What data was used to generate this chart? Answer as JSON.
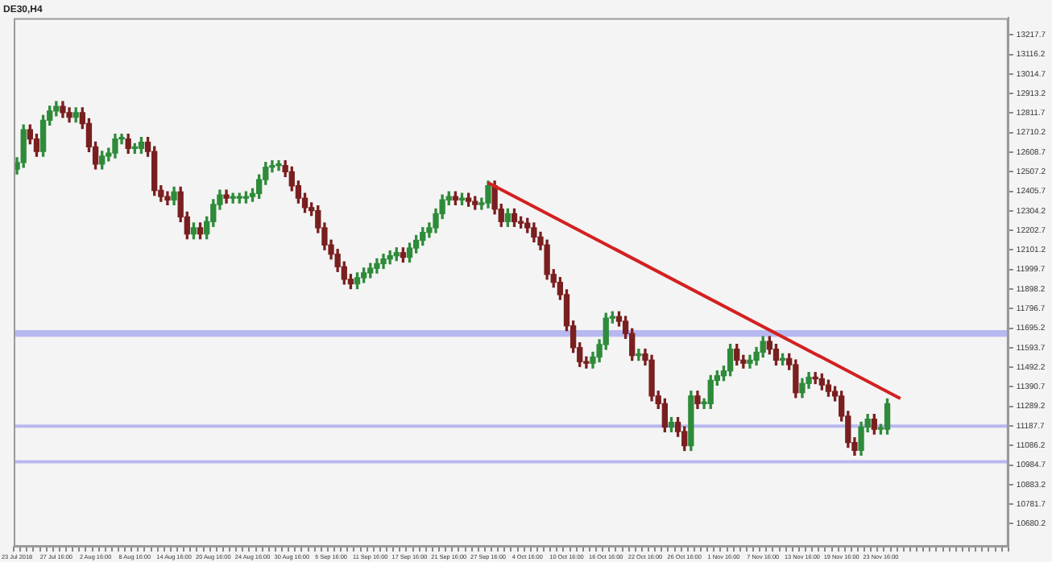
{
  "chart_data": {
    "type": "candlestick",
    "title": "DE30,H4",
    "categories": [
      "23 Jul 2018",
      null,
      null,
      null,
      null,
      null,
      "27 Jul 16:00",
      null,
      null,
      null,
      null,
      null,
      "2 Aug 16:00",
      null,
      null,
      null,
      null,
      null,
      "8 Aug 16:00",
      null,
      null,
      null,
      null,
      null,
      "14 Aug 16:00",
      null,
      null,
      null,
      null,
      null,
      "20 Aug 16:00",
      null,
      null,
      null,
      null,
      null,
      "24 Aug 16:00",
      null,
      null,
      null,
      null,
      null,
      "30 Aug 16:00",
      null,
      null,
      null,
      null,
      null,
      "5 Sep 16:00",
      null,
      null,
      null,
      null,
      null,
      "11 Sep 16:00",
      null,
      null,
      null,
      null,
      null,
      "17 Sep 16:00",
      null,
      null,
      null,
      null,
      null,
      "21 Sep 16:00",
      null,
      null,
      null,
      null,
      null,
      "27 Sep 16:00",
      null,
      null,
      null,
      null,
      null,
      "4 Oct 16:00",
      null,
      null,
      null,
      null,
      null,
      "10 Oct 16:00",
      null,
      null,
      null,
      null,
      null,
      "16 Oct 16:00",
      null,
      null,
      null,
      null,
      null,
      "22 Oct 16:00",
      null,
      null,
      null,
      null,
      null,
      "26 Oct 16:00",
      null,
      null,
      null,
      null,
      null,
      "1 Nov 16:00",
      null,
      null,
      null,
      null,
      null,
      "7 Nov 16:00",
      null,
      null,
      null,
      null,
      null,
      "13 Nov 16:00",
      null,
      null,
      null,
      null,
      null,
      "19 Nov 16:00",
      null,
      null,
      null,
      null,
      null,
      "23 Nov 16:00",
      null,
      null,
      null,
      null,
      null,
      null,
      null,
      null,
      null,
      null,
      null,
      null,
      null,
      null,
      null,
      null,
      null,
      null,
      null
    ],
    "colors": [
      "#2e8b3a",
      "#2e8b3a",
      "#7a1f1f",
      "#7a1f1f",
      "#2e8b3a",
      "#2e8b3a",
      "#2e8b3a",
      "#7a1f1f",
      "#7a1f1f",
      "#2e8b3a",
      "#7a1f1f",
      "#7a1f1f",
      "#7a1f1f",
      "#2e8b3a",
      "#2e8b3a",
      "#2e8b3a",
      "#2e8b3a",
      "#7a1f1f",
      "#2e8b3a",
      "#2e8b3a",
      "#7a1f1f",
      "#7a1f1f",
      "#7a1f1f",
      "#7a1f1f",
      "#2e8b3a",
      "#7a1f1f",
      "#7a1f1f",
      "#2e8b3a",
      "#7a1f1f",
      "#2e8b3a",
      "#2e8b3a",
      "#2e8b3a",
      "#7a1f1f",
      "#2e8b3a",
      "#2e8b3a",
      "#2e8b3a",
      "#2e8b3a",
      "#2e8b3a",
      "#2e8b3a",
      "#2e8b3a",
      "#2e8b3a",
      "#7a1f1f",
      "#7a1f1f",
      "#7a1f1f",
      "#7a1f1f",
      "#7a1f1f",
      "#7a1f1f",
      "#7a1f1f",
      "#7a1f1f",
      "#7a1f1f",
      "#7a1f1f",
      "#7a1f1f",
      "#2e8b3a",
      "#2e8b3a",
      "#2e8b3a",
      "#2e8b3a",
      "#2e8b3a",
      "#2e8b3a",
      "#2e8b3a",
      "#7a1f1f",
      "#2e8b3a",
      "#2e8b3a",
      "#2e8b3a",
      "#2e8b3a",
      "#2e8b3a",
      "#2e8b3a",
      "#2e8b3a",
      "#7a1f1f",
      "#2e8b3a",
      "#7a1f1f",
      "#7a1f1f",
      "#2e8b3a",
      "#2e8b3a",
      "#7a1f1f",
      "#7a1f1f",
      "#2e8b3a",
      "#7a1f1f",
      "#7a1f1f",
      "#7a1f1f",
      "#7a1f1f",
      "#7a1f1f",
      "#7a1f1f",
      "#7a1f1f",
      "#7a1f1f",
      "#7a1f1f",
      "#7a1f1f",
      "#7a1f1f",
      "#7a1f1f",
      "#2e8b3a",
      "#2e8b3a",
      "#2e8b3a",
      "#2e8b3a",
      "#7a1f1f",
      "#7a1f1f",
      "#7a1f1f",
      "#2e8b3a",
      "#7a1f1f",
      "#7a1f1f",
      "#7a1f1f",
      "#7a1f1f",
      "#2e8b3a",
      "#7a1f1f",
      "#7a1f1f",
      "#2e8b3a",
      "#7a1f1f",
      "#2e8b3a",
      "#2e8b3a",
      "#2e8b3a",
      "#2e8b3a",
      "#2e8b3a",
      "#7a1f1f",
      "#7a1f1f",
      "#2e8b3a",
      "#2e8b3a",
      "#2e8b3a",
      "#7a1f1f",
      "#7a1f1f",
      "#2e8b3a",
      "#7a1f1f",
      "#7a1f1f",
      "#2e8b3a",
      "#2e8b3a",
      "#7a1f1f",
      "#7a1f1f",
      "#7a1f1f",
      "#7a1f1f",
      "#7a1f1f",
      "#7a1f1f",
      "#7a1f1f",
      "#2e8b3a",
      "#2e8b3a",
      "#7a1f1f",
      "#2e8b3a",
      "#2e8b3a",
      null,
      null,
      null,
      null,
      null,
      null,
      null,
      null,
      null,
      null,
      null,
      null,
      null,
      null,
      null,
      null,
      null,
      null
    ],
    "ohlc": [
      [
        12520,
        12580,
        12495,
        12555
      ],
      [
        12555,
        12750,
        12530,
        12725
      ],
      [
        12725,
        12750,
        12652,
        12677
      ],
      [
        12677,
        12702,
        12587,
        12612
      ],
      [
        12612,
        12799,
        12587,
        12774
      ],
      [
        12774,
        12847,
        12749,
        12822
      ],
      [
        12822,
        12871,
        12797,
        12846
      ],
      [
        12846,
        12871,
        12789,
        12814
      ],
      [
        12814,
        12839,
        12765,
        12790
      ],
      [
        12790,
        12839,
        12765,
        12814
      ],
      [
        12814,
        12839,
        12732,
        12757
      ],
      [
        12757,
        12782,
        12611,
        12636
      ],
      [
        12636,
        12661,
        12522,
        12547
      ],
      [
        12547,
        12613,
        12522,
        12588
      ],
      [
        12588,
        12629,
        12563,
        12604
      ],
      [
        12604,
        12702,
        12579,
        12677
      ],
      [
        12677,
        12702,
        12652,
        12677
      ],
      [
        12677,
        12702,
        12603,
        12628
      ],
      [
        12628,
        12653,
        12603,
        12628
      ],
      [
        12628,
        12685,
        12603,
        12660
      ],
      [
        12660,
        12685,
        12587,
        12612
      ],
      [
        12612,
        12637,
        12385,
        12410
      ],
      [
        12410,
        12435,
        12353,
        12378
      ],
      [
        12378,
        12403,
        12336,
        12361
      ],
      [
        12361,
        12427,
        12336,
        12402
      ],
      [
        12402,
        12427,
        12248,
        12273
      ],
      [
        12273,
        12298,
        12159,
        12184
      ],
      [
        12184,
        12241,
        12159,
        12216
      ],
      [
        12216,
        12241,
        12159,
        12184
      ],
      [
        12184,
        12273,
        12159,
        12248
      ],
      [
        12248,
        12362,
        12223,
        12337
      ],
      [
        12337,
        12411,
        12312,
        12386
      ],
      [
        12386,
        12411,
        12345,
        12370
      ],
      [
        12370,
        12395,
        12345,
        12370
      ],
      [
        12370,
        12395,
        12345,
        12370
      ],
      [
        12370,
        12403,
        12345,
        12378
      ],
      [
        12378,
        12419,
        12353,
        12394
      ],
      [
        12394,
        12491,
        12369,
        12466
      ],
      [
        12466,
        12556,
        12441,
        12531
      ],
      [
        12531,
        12564,
        12506,
        12539
      ],
      [
        12539,
        12564,
        12514,
        12539
      ],
      [
        12539,
        12564,
        12482,
        12507
      ],
      [
        12507,
        12532,
        12409,
        12434
      ],
      [
        12434,
        12459,
        12345,
        12370
      ],
      [
        12370,
        12395,
        12296,
        12321
      ],
      [
        12321,
        12346,
        12280,
        12305
      ],
      [
        12305,
        12330,
        12191,
        12216
      ],
      [
        12216,
        12241,
        12102,
        12127
      ],
      [
        12127,
        12152,
        12054,
        12079
      ],
      [
        12079,
        12104,
        11989,
        12014
      ],
      [
        12014,
        12039,
        11924,
        11949
      ],
      [
        11949,
        11974,
        11900,
        11925
      ],
      [
        11925,
        11982,
        11900,
        11957
      ],
      [
        11957,
        12007,
        11932,
        11982
      ],
      [
        11982,
        12031,
        11957,
        12006
      ],
      [
        12006,
        12055,
        11981,
        12030
      ],
      [
        12030,
        12079,
        12005,
        12054
      ],
      [
        12054,
        12096,
        12029,
        12071
      ],
      [
        12071,
        12112,
        12046,
        12087
      ],
      [
        12087,
        12112,
        12038,
        12063
      ],
      [
        12063,
        12136,
        12038,
        12111
      ],
      [
        12111,
        12176,
        12086,
        12151
      ],
      [
        12151,
        12217,
        12126,
        12192
      ],
      [
        12192,
        12241,
        12167,
        12216
      ],
      [
        12216,
        12314,
        12191,
        12289
      ],
      [
        12289,
        12386,
        12264,
        12361
      ],
      [
        12361,
        12403,
        12336,
        12378
      ],
      [
        12378,
        12403,
        12336,
        12361
      ],
      [
        12361,
        12395,
        12336,
        12370
      ],
      [
        12370,
        12395,
        12328,
        12353
      ],
      [
        12353,
        12378,
        12312,
        12337
      ],
      [
        12337,
        12370,
        12312,
        12345
      ],
      [
        12345,
        12459,
        12320,
        12434
      ],
      [
        12434,
        12459,
        12288,
        12313
      ],
      [
        12313,
        12338,
        12223,
        12248
      ],
      [
        12248,
        12314,
        12223,
        12289
      ],
      [
        12289,
        12314,
        12223,
        12248
      ],
      [
        12248,
        12273,
        12215,
        12240
      ],
      [
        12240,
        12265,
        12191,
        12216
      ],
      [
        12216,
        12241,
        12143,
        12168
      ],
      [
        12168,
        12193,
        12102,
        12127
      ],
      [
        12127,
        12152,
        11949,
        11974
      ],
      [
        11974,
        11999,
        11908,
        11933
      ],
      [
        11933,
        11958,
        11844,
        11869
      ],
      [
        11869,
        11894,
        11682,
        11707
      ],
      [
        11707,
        11732,
        11569,
        11594
      ],
      [
        11594,
        11619,
        11496,
        11521
      ],
      [
        11521,
        11546,
        11488,
        11513
      ],
      [
        11513,
        11570,
        11488,
        11545
      ],
      [
        11545,
        11635,
        11520,
        11610
      ],
      [
        11610,
        11772,
        11585,
        11747
      ],
      [
        11747,
        11780,
        11722,
        11755
      ],
      [
        11755,
        11780,
        11706,
        11731
      ],
      [
        11731,
        11756,
        11642,
        11667
      ],
      [
        11667,
        11692,
        11528,
        11553
      ],
      [
        11553,
        11586,
        11528,
        11561
      ],
      [
        11561,
        11586,
        11504,
        11529
      ],
      [
        11529,
        11554,
        11318,
        11343
      ],
      [
        11343,
        11368,
        11278,
        11303
      ],
      [
        11303,
        11328,
        11157,
        11182
      ],
      [
        11182,
        11231,
        11157,
        11206
      ],
      [
        11206,
        11231,
        11133,
        11158
      ],
      [
        11158,
        11183,
        11060,
        11085
      ],
      [
        11085,
        11368,
        11060,
        11343
      ],
      [
        11343,
        11368,
        11278,
        11303
      ],
      [
        11303,
        11328,
        11278,
        11303
      ],
      [
        11303,
        11449,
        11278,
        11424
      ],
      [
        11424,
        11473,
        11399,
        11448
      ],
      [
        11448,
        11498,
        11423,
        11473
      ],
      [
        11473,
        11611,
        11448,
        11586
      ],
      [
        11586,
        11611,
        11504,
        11529
      ],
      [
        11529,
        11554,
        11488,
        11513
      ],
      [
        11513,
        11554,
        11488,
        11529
      ],
      [
        11529,
        11595,
        11504,
        11570
      ],
      [
        11570,
        11651,
        11545,
        11626
      ],
      [
        11626,
        11651,
        11561,
        11586
      ],
      [
        11586,
        11611,
        11504,
        11529
      ],
      [
        11529,
        11562,
        11504,
        11537
      ],
      [
        11537,
        11562,
        11480,
        11505
      ],
      [
        11505,
        11530,
        11335,
        11360
      ],
      [
        11360,
        11433,
        11335,
        11408
      ],
      [
        11408,
        11465,
        11383,
        11440
      ],
      [
        11440,
        11465,
        11407,
        11432
      ],
      [
        11432,
        11457,
        11375,
        11400
      ],
      [
        11400,
        11425,
        11342,
        11367
      ],
      [
        11367,
        11392,
        11318,
        11343
      ],
      [
        11343,
        11368,
        11213,
        11238
      ],
      [
        11238,
        11263,
        11076,
        11101
      ],
      [
        11101,
        11126,
        11036,
        11061
      ],
      [
        11061,
        11207,
        11036,
        11182
      ],
      [
        11182,
        11247,
        11157,
        11222
      ],
      [
        11222,
        11247,
        11145,
        11170
      ],
      [
        11170,
        11195,
        11145,
        11170
      ],
      [
        11170,
        11328,
        11145,
        11303
      ],
      null,
      null,
      null,
      null,
      null,
      null,
      null,
      null,
      null,
      null,
      null,
      null,
      null,
      null,
      null,
      null,
      null,
      null
    ],
    "series": [
      {
        "type": "line",
        "color": "#d42020",
        "values": [
          null,
          null,
          null,
          null,
          null,
          null,
          null,
          null,
          null,
          null,
          null,
          null,
          null,
          null,
          null,
          null,
          null,
          null,
          null,
          null,
          null,
          null,
          null,
          null,
          null,
          null,
          null,
          null,
          null,
          null,
          null,
          null,
          null,
          null,
          null,
          null,
          null,
          null,
          null,
          null,
          null,
          null,
          null,
          null,
          null,
          null,
          null,
          null,
          null,
          null,
          null,
          null,
          null,
          null,
          null,
          null,
          null,
          null,
          null,
          null,
          null,
          null,
          null,
          null,
          null,
          null,
          null,
          null,
          null,
          null,
          null,
          null,
          12450,
          null,
          null,
          null,
          null,
          null,
          null,
          null,
          null,
          null,
          null,
          null,
          null,
          null,
          null,
          null,
          null,
          null,
          null,
          null,
          null,
          null,
          null,
          null,
          null,
          null,
          null,
          null,
          null,
          null,
          null,
          null,
          null,
          null,
          null,
          null,
          null,
          null,
          null,
          null,
          null,
          null,
          null,
          null,
          null,
          null,
          null,
          null,
          null,
          null,
          null,
          null,
          null,
          null,
          null,
          null,
          null,
          null,
          null,
          null,
          null,
          null,
          null,
          11330,
          null,
          null,
          null,
          null,
          null,
          null,
          null,
          null,
          null,
          null,
          null,
          null,
          null,
          null,
          null,
          null
        ]
      }
    ],
    "bands": [
      {
        "axis": "y",
        "from": 11650,
        "to": 11685,
        "color": "#b8b8f0"
      },
      {
        "axis": "y",
        "from": 11181,
        "to": 11195,
        "color": "#b8b8f0"
      },
      {
        "axis": "y",
        "from": 10996,
        "to": 11010,
        "color": "#b8b8f0"
      }
    ],
    "ylim": [
      10560,
      13305
    ],
    "yticks": [
      10680.2,
      10781.7,
      10883.2,
      10984.7,
      11086.2,
      11187.7,
      11289.2,
      11390.7,
      11492.2,
      11593.7,
      11695.2,
      11796.7,
      11898.2,
      11999.7,
      12101.2,
      12202.7,
      12304.2,
      12405.7,
      12507.2,
      12608.7,
      12710.2,
      12811.7,
      12913.2,
      13014.7,
      13116.2,
      13217.7
    ],
    "grid": false
  }
}
